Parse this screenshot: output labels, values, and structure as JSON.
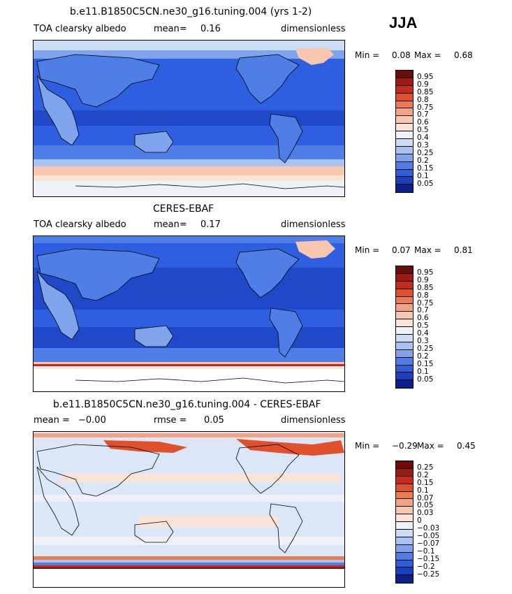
{
  "season": "JJA",
  "panels": [
    {
      "id": "model",
      "title": "b.e11.B1850C5CN.ne30_g16.tuning.004 (yrs 1-2)",
      "left_label": "TOA clearsky albedo",
      "stat_label": "mean=",
      "stat_value": "0.16",
      "units": "dimensionless",
      "min_label": "Min =",
      "min_value": "0.08",
      "max_label": "Max =",
      "max_value": "0.68",
      "colorbar_labels": [
        "0.95",
        "0.9",
        "0.85",
        "0.8",
        "0.75",
        "0.7",
        "0.6",
        "0.5",
        "0.4",
        "0.3",
        "0.25",
        "0.2",
        "0.15",
        "0.1",
        "0.05"
      ]
    },
    {
      "id": "obs",
      "title": "CERES-EBAF",
      "left_label": "TOA clearsky albedo",
      "stat_label": "mean=",
      "stat_value": "0.17",
      "units": "dimensionless",
      "min_label": "Min =",
      "min_value": "0.07",
      "max_label": "Max =",
      "max_value": "0.81",
      "colorbar_labels": [
        "0.95",
        "0.9",
        "0.85",
        "0.8",
        "0.75",
        "0.7",
        "0.6",
        "0.5",
        "0.4",
        "0.3",
        "0.25",
        "0.2",
        "0.15",
        "0.1",
        "0.05"
      ]
    },
    {
      "id": "diff",
      "title": "b.e11.B1850C5CN.ne30_g16.tuning.004 - CERES-EBAF",
      "left_label": "mean =",
      "left_value": "−0.00",
      "stat_label": "rmse =",
      "stat_value": "0.05",
      "units": "dimensionless",
      "min_label": "Min =",
      "min_value": "−0.29",
      "max_label": "Max =",
      "max_value": "0.45",
      "colorbar_labels": [
        "0.25",
        "0.2",
        "0.15",
        "0.1",
        "0.07",
        "0.05",
        "0.03",
        "0",
        "−0.03",
        "−0.05",
        "−0.07",
        "−0.1",
        "−0.15",
        "−0.2",
        "−0.25"
      ]
    }
  ],
  "colors": {
    "albedo_scale": [
      "#6b0d0d",
      "#9e1a12",
      "#c72a18",
      "#e0502b",
      "#ee7a4f",
      "#f4a483",
      "#f8c7b0",
      "#fbe4d6",
      "#eef1f8",
      "#cdddf6",
      "#a8c3f1",
      "#7fa4ec",
      "#4f7fe6",
      "#2f5fd8",
      "#1a3fc0",
      "#0a1f8a"
    ],
    "diff_scale": [
      "#6b0d0d",
      "#9e1a12",
      "#c72a18",
      "#e0502b",
      "#ee7a4f",
      "#f4a483",
      "#f8c7b0",
      "#fbe4d6",
      "#eef1f8",
      "#cdddf6",
      "#a8c3f1",
      "#7fa4ec",
      "#4f7fe6",
      "#2f5fd8",
      "#1a3fc0",
      "#0a1f8a"
    ],
    "ocean_model": "#2d5fe0",
    "ocean_dark": "#1f49c9",
    "land_model": "#4f7fe6",
    "coast": "#000000",
    "diff_background": "#dbe6f8"
  }
}
